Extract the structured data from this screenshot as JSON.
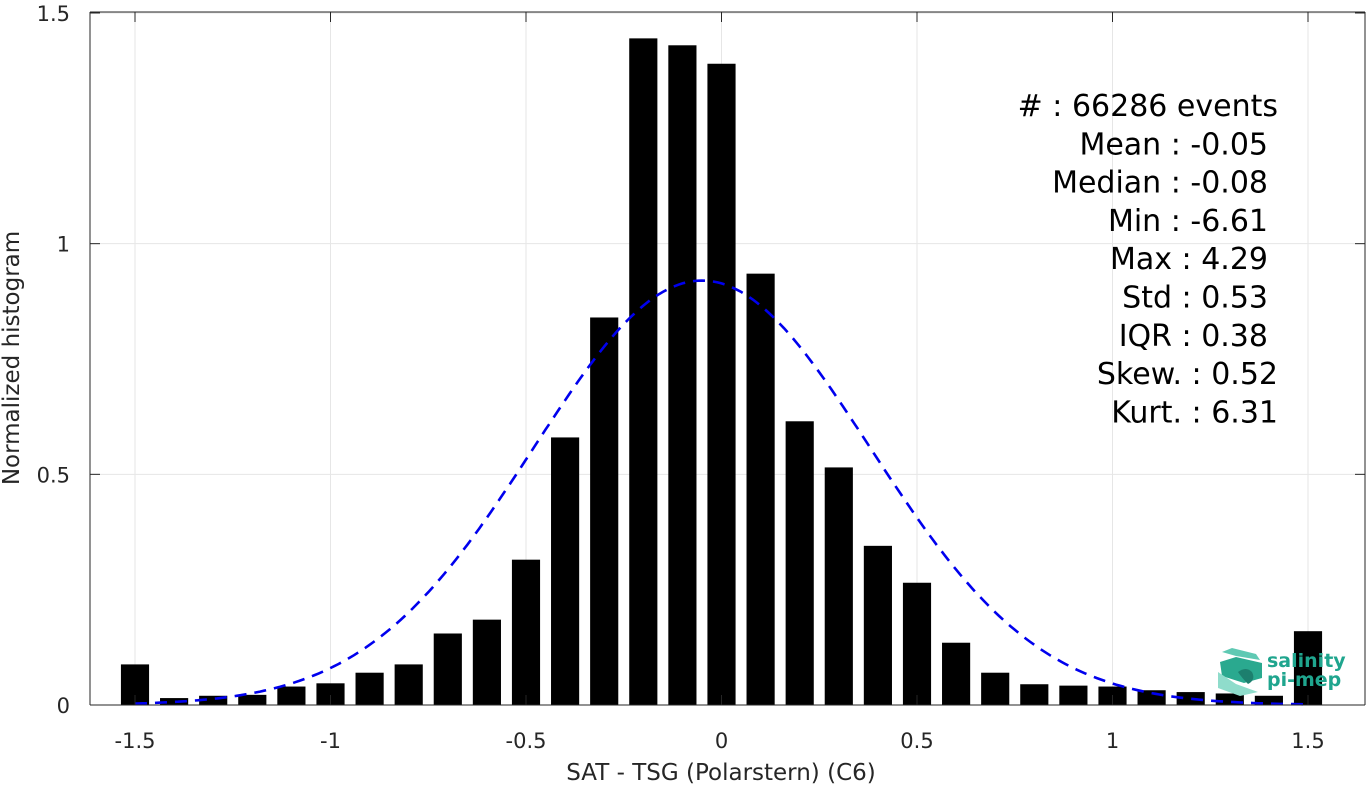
{
  "chart_data": {
    "type": "bar",
    "title": "",
    "xlabel": "SAT - TSG (Polarstern) (C6)",
    "ylabel": "Normalized histogram",
    "xlim": [
      -1.6,
      1.6
    ],
    "ylim": [
      0,
      1.5
    ],
    "grid": true,
    "bar_color": "#000000",
    "curve_color": "#0000ee",
    "x_ticks": [
      {
        "value": -1.5,
        "label": "-1.5"
      },
      {
        "value": -1,
        "label": "-1"
      },
      {
        "value": -0.5,
        "label": "-0.5"
      },
      {
        "value": 0,
        "label": "0"
      },
      {
        "value": 0.5,
        "label": "0.5"
      },
      {
        "value": 1,
        "label": "1"
      },
      {
        "value": 1.5,
        "label": "1.5"
      }
    ],
    "y_ticks": [
      {
        "value": 0,
        "label": "0"
      },
      {
        "value": 0.5,
        "label": "0.5"
      },
      {
        "value": 1,
        "label": "1"
      },
      {
        "value": 1.5,
        "label": "1.5"
      }
    ],
    "bin_width": 0.1,
    "bin_centers": [
      -1.5,
      -1.4,
      -1.3,
      -1.2,
      -1.1,
      -1.0,
      -0.9,
      -0.8,
      -0.7,
      -0.6,
      -0.5,
      -0.4,
      -0.3,
      -0.2,
      -0.1,
      0.0,
      0.1,
      0.2,
      0.3,
      0.4,
      0.5,
      0.6,
      0.7,
      0.8,
      0.9,
      1.0,
      1.1,
      1.2,
      1.3,
      1.4,
      1.5
    ],
    "values": [
      0.088,
      0.015,
      0.02,
      0.022,
      0.04,
      0.047,
      0.07,
      0.088,
      0.155,
      0.185,
      0.315,
      0.58,
      0.84,
      1.445,
      1.43,
      1.39,
      0.935,
      0.615,
      0.515,
      0.345,
      0.265,
      0.135,
      0.07,
      0.045,
      0.042,
      0.04,
      0.032,
      0.028,
      0.025,
      0.02,
      0.16
    ],
    "fit_curve": {
      "style": "dashed",
      "distribution": "gaussian",
      "mean": -0.05,
      "std": 0.43,
      "peak": 0.92
    },
    "stats": [
      {
        "label": "#",
        "value": ": 66286 events"
      },
      {
        "label": "Mean",
        "value": ": -0.05"
      },
      {
        "label": "Median",
        "value": ": -0.08"
      },
      {
        "label": "Min",
        "value": ": -6.61"
      },
      {
        "label": "Max",
        "value": ": 4.29"
      },
      {
        "label": "Std",
        "value": ": 0.53"
      },
      {
        "label": "IQR",
        "value": ": 0.38"
      },
      {
        "label": "Skew.",
        "value": ": 0.52"
      },
      {
        "label": "Kurt.",
        "value": ": 6.31"
      }
    ]
  },
  "logo": {
    "line1": "salinity",
    "line2": "pi-mep",
    "color": "#1fa58e"
  }
}
